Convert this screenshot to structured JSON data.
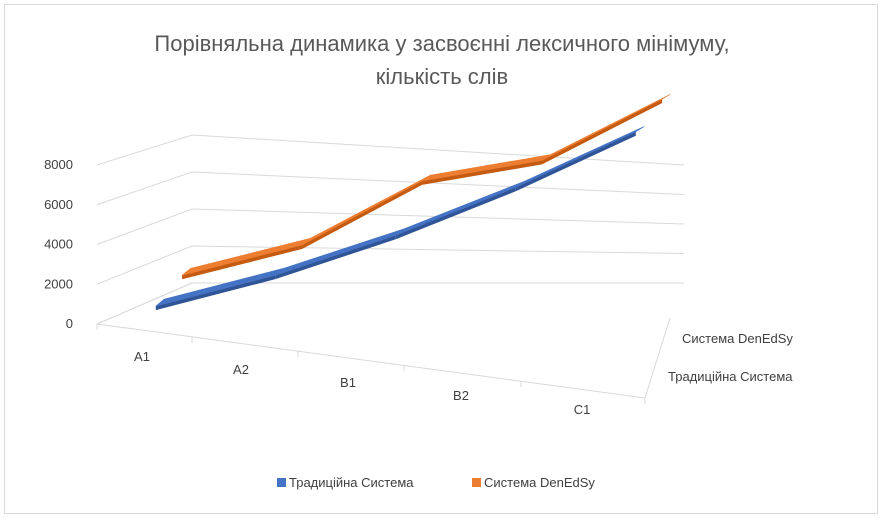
{
  "chart_data": {
    "type": "line",
    "variant": "3d-line",
    "title_lines": [
      "Порівняльна динамика у засвоєнні лексичного мінімуму,",
      "кількість слів"
    ],
    "categories": [
      "A1",
      "A2",
      "B1",
      "B2",
      "C1"
    ],
    "series": [
      {
        "name": "Традиційна Система",
        "values": [
          500,
          1000,
          2000,
          3500,
          5500
        ],
        "color": "#4472C4",
        "shade": "#2F5597"
      },
      {
        "name": "Система DenEdSy",
        "values": [
          1000,
          1500,
          4000,
          4000,
          6500
        ],
        "color": "#ED7D31",
        "shade": "#C55A11"
      }
    ],
    "y_ticks": [
      0,
      2000,
      4000,
      6000,
      8000
    ],
    "y_tick_labels": [
      "0",
      "2000",
      "4000",
      "6000",
      "8000"
    ],
    "ylim": [
      0,
      8000
    ],
    "depth_labels": [
      "Система DenEdSy",
      "Традиційна Система"
    ],
    "legend_position": "bottom",
    "grid": true
  }
}
